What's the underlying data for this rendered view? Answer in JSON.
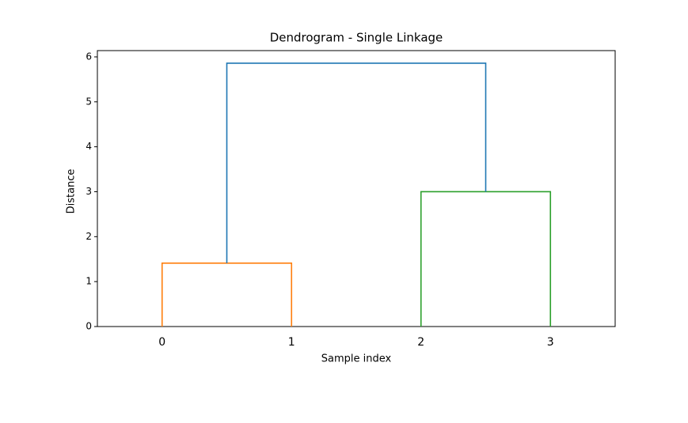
{
  "chart_data": {
    "type": "dendrogram",
    "title": "Dendrogram - Single Linkage",
    "x_label": "Sample index",
    "y_label": "Distance",
    "categories": [
      "0",
      "1",
      "2",
      "3"
    ],
    "links": [
      {
        "children": [
          0,
          1
        ],
        "height": 1.41,
        "color": "#ff7f0e"
      },
      {
        "children": [
          2,
          3
        ],
        "height": 3.0,
        "color": "#2ca02c"
      },
      {
        "children": [
          4,
          5
        ],
        "height": 5.86,
        "color": "#1f77b4"
      }
    ],
    "ylim": [
      0,
      6.14
    ],
    "yticks": [
      0,
      1,
      2,
      3,
      4,
      5,
      6
    ]
  }
}
